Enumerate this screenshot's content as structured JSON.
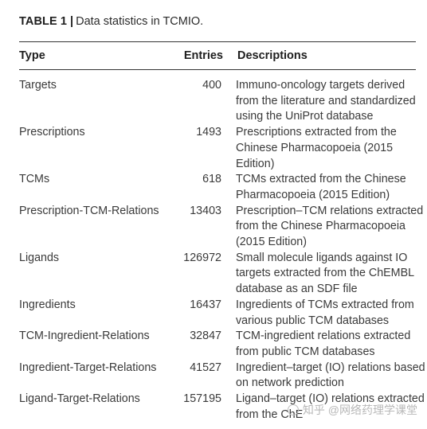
{
  "caption": {
    "label": "TABLE 1",
    "separator": "|",
    "text": "Data statistics in TCMIO."
  },
  "table": {
    "headers": {
      "type": "Type",
      "entries": "Entries",
      "descriptions": "Descriptions"
    },
    "rows": [
      {
        "type": "Targets",
        "entries": "400",
        "description": [
          "Immuno-oncology targets derived",
          "from the literature and standardized",
          "using the UniProt database"
        ]
      },
      {
        "type": "Prescriptions",
        "entries": "1493",
        "description": [
          "Prescriptions extracted from the",
          "Chinese Pharmacopoeia (2015",
          "Edition)"
        ]
      },
      {
        "type": "TCMs",
        "entries": "618",
        "description": [
          "TCMs extracted from the Chinese",
          "Pharmacopoeia (2015 Edition)"
        ]
      },
      {
        "type": "Prescription-TCM-Relations",
        "entries": "13403",
        "description": [
          "Prescription–TCM relations extracted",
          "from the Chinese Pharmacopoeia",
          "(2015 Edition)"
        ]
      },
      {
        "type": "Ligands",
        "entries": "126972",
        "description": [
          "Small molecule ligands against IO",
          "targets extracted from the ChEMBL",
          "database as an SDF file"
        ]
      },
      {
        "type": "Ingredients",
        "entries": "16437",
        "description": [
          "Ingredients of TCMs extracted from",
          "various public TCM databases"
        ]
      },
      {
        "type": "TCM-Ingredient-Relations",
        "entries": "32847",
        "description": [
          "TCM-ingredient relations extracted",
          "from public TCM databases"
        ]
      },
      {
        "type": "Ingredient-Target-Relations",
        "entries": "41527",
        "description": [
          "Ingredient–target (IO) relations based",
          "on network prediction"
        ]
      },
      {
        "type": "Ligand-Target-Relations",
        "entries": "157195",
        "description": [
          "Ligand–target (IO) relations extracted",
          "from the ChE"
        ]
      }
    ]
  },
  "watermark": {
    "text": "知乎 @网络药理学课堂",
    "icon": "zhihu-logo-icon"
  }
}
